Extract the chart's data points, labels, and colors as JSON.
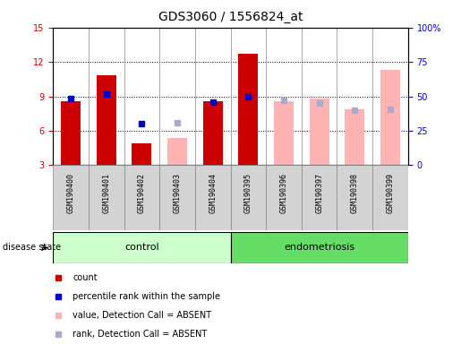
{
  "title": "GDS3060 / 1556824_at",
  "samples": [
    "GSM190400",
    "GSM190401",
    "GSM190402",
    "GSM190403",
    "GSM190404",
    "GSM190395",
    "GSM190396",
    "GSM190397",
    "GSM190398",
    "GSM190399"
  ],
  "n_control": 5,
  "n_endo": 5,
  "ylim_left": [
    3,
    15
  ],
  "ylim_right": [
    0,
    100
  ],
  "yticks_left": [
    3,
    6,
    9,
    12,
    15
  ],
  "yticks_right": [
    0,
    25,
    50,
    75,
    100
  ],
  "yticklabels_right": [
    "0",
    "25",
    "50",
    "75",
    "100%"
  ],
  "count_values": [
    8.6,
    10.8,
    4.9,
    null,
    8.6,
    12.7,
    null,
    null,
    null,
    null
  ],
  "percentile_values": [
    8.8,
    9.2,
    6.6,
    null,
    8.5,
    9.0,
    null,
    null,
    null,
    null
  ],
  "absent_value_values": [
    null,
    null,
    null,
    5.4,
    null,
    null,
    8.6,
    8.8,
    7.9,
    11.3
  ],
  "absent_rank_values": [
    null,
    null,
    null,
    6.7,
    null,
    null,
    8.65,
    8.4,
    7.8,
    7.9
  ],
  "count_color": "#cc0000",
  "percentile_color": "#0000cc",
  "absent_value_color": "#ffb3b3",
  "absent_rank_color": "#aaaacc",
  "bar_bottom": 3,
  "bar_width": 0.55,
  "marker_size": 5,
  "control_color": "#ccffcc",
  "endo_color": "#66dd66",
  "sample_bg_color": "#d3d3d3",
  "legend_items": [
    {
      "label": "count",
      "color": "#cc0000"
    },
    {
      "label": "percentile rank within the sample",
      "color": "#0000cc"
    },
    {
      "label": "value, Detection Call = ABSENT",
      "color": "#ffb3b3"
    },
    {
      "label": "rank, Detection Call = ABSENT",
      "color": "#aaaacc"
    }
  ],
  "grid_yticks": [
    6,
    9,
    12
  ],
  "title_fontsize": 10,
  "tick_label_fontsize": 7,
  "sample_label_fontsize": 6,
  "legend_fontsize": 7,
  "group_label_fontsize": 8,
  "disease_state_fontsize": 7
}
